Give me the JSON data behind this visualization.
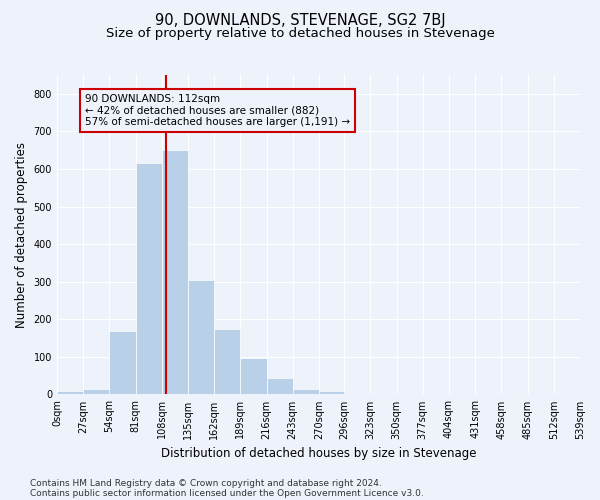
{
  "title": "90, DOWNLANDS, STEVENAGE, SG2 7BJ",
  "subtitle": "Size of property relative to detached houses in Stevenage",
  "xlabel": "Distribution of detached houses by size in Stevenage",
  "ylabel": "Number of detached properties",
  "bar_color": "#b8d0e8",
  "bar_edgecolor": "#ffffff",
  "marker_line_color": "#cc0000",
  "marker_value": 112,
  "annotation_text": "90 DOWNLANDS: 112sqm\n← 42% of detached houses are smaller (882)\n57% of semi-detached houses are larger (1,191) →",
  "bin_edges": [
    0,
    27,
    54,
    81,
    108,
    135,
    162,
    189,
    216,
    243,
    270,
    296,
    323,
    350,
    377,
    404,
    431,
    458,
    485,
    512,
    539
  ],
  "bin_counts": [
    8,
    15,
    170,
    615,
    650,
    305,
    175,
    97,
    43,
    15,
    10,
    2,
    0,
    0,
    0,
    0,
    0,
    5,
    0,
    2
  ],
  "ylim": [
    0,
    850
  ],
  "yticks": [
    0,
    100,
    200,
    300,
    400,
    500,
    600,
    700,
    800
  ],
  "footer_line1": "Contains HM Land Registry data © Crown copyright and database right 2024.",
  "footer_line2": "Contains public sector information licensed under the Open Government Licence v3.0.",
  "background_color": "#eef2fb",
  "grid_color": "#ffffff",
  "title_fontsize": 10.5,
  "subtitle_fontsize": 9.5,
  "axis_label_fontsize": 8.5,
  "tick_fontsize": 7,
  "annotation_fontsize": 7.5,
  "footer_fontsize": 6.5
}
